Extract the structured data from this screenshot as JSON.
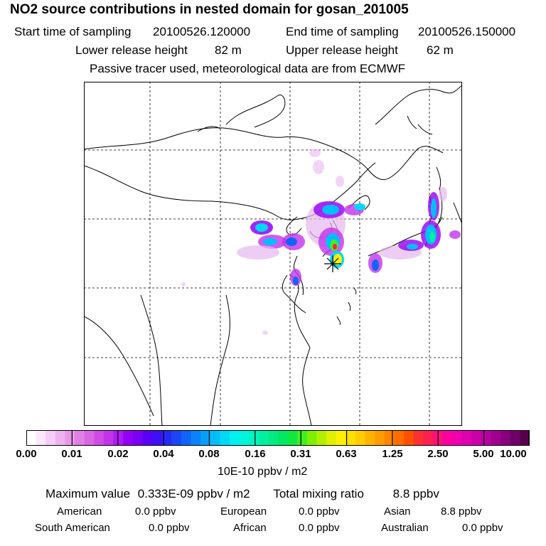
{
  "title": "NO2 source contributions in nested domain for gosan_201005",
  "header": {
    "start_label": "Start time of sampling",
    "start_value": "20100526.120000",
    "end_label": "End time of sampling",
    "end_value": "20100526.150000",
    "lower_label": "Lower release height",
    "lower_value": "82 m",
    "upper_label": "Upper release height",
    "upper_value": "62 m",
    "note": "Passive tracer used, meteorological data are from ECMWF"
  },
  "colorbar": {
    "ticks": [
      "0.00",
      "0.01",
      "0.02",
      "0.04",
      "0.08",
      "0.16",
      "0.31",
      "0.63",
      "1.25",
      "2.50",
      "5.00",
      "10.00"
    ],
    "colors": [
      "#ffffff",
      "#fbe6fb",
      "#f5ccf5",
      "#eeb2ee",
      "#e799e9",
      "#e07fe4",
      "#d966e3",
      "#cf4ce6",
      "#c233ec",
      "#ad1af2",
      "#9200f5",
      "#7a00f5",
      "#5a00f5",
      "#3f10f5",
      "#2828f5",
      "#1a46f5",
      "#1064f8",
      "#0a82fa",
      "#06a0fa",
      "#04befa",
      "#00d8f5",
      "#00f0f0",
      "#00f5dc",
      "#00f5c0",
      "#00f0a0",
      "#00ec80",
      "#00e860",
      "#10e840",
      "#40f020",
      "#80f000",
      "#b0f000",
      "#e0f000",
      "#fff000",
      "#ffe000",
      "#ffcc00",
      "#ffb400",
      "#ff9c00",
      "#ff8400",
      "#ff6c00",
      "#ff5000",
      "#ff3030",
      "#ff2050",
      "#ff1078",
      "#ff00a0",
      "#f000b0",
      "#e000b0",
      "#cc00a8",
      "#b800a0",
      "#a00090",
      "#88007c",
      "#700068",
      "#580050"
    ],
    "units": "10E-10 ppbv / m2"
  },
  "summary": {
    "max_label": "Maximum value",
    "max_value": "0.333E-09 ppbv / m2",
    "total_label": "Total mixing ratio",
    "total_value": "8.8 ppbv",
    "regions": [
      {
        "name": "American",
        "value": "0.0 ppbv"
      },
      {
        "name": "European",
        "value": "0.0 ppbv"
      },
      {
        "name": "Asian",
        "value": "8.8 ppbv"
      },
      {
        "name": "South American",
        "value": "0.0 ppbv"
      },
      {
        "name": "African",
        "value": "0.0 ppbv"
      },
      {
        "name": "Australian",
        "value": "0.0 ppbv"
      }
    ]
  }
}
